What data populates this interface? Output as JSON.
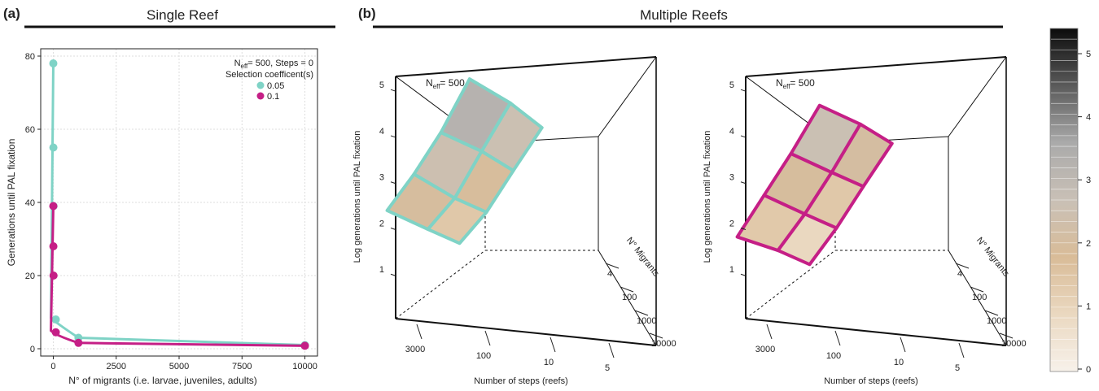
{
  "panels": {
    "a": {
      "letter": "(a)",
      "title": "Single Reef"
    },
    "b": {
      "letter": "(b)",
      "title": "Multiple Reefs"
    }
  },
  "colors": {
    "teal": "#7fd3c6",
    "magenta": "#c51f86",
    "grid": "#dcdcdc",
    "axis": "#222222"
  },
  "chart_data": [
    {
      "type": "line",
      "panel": "a",
      "xlabel": "N° of migrants (i.e. larvae, juveniles, adults)",
      "ylabel": "Generations until PAL fixation",
      "xlim": [
        -500,
        10500
      ],
      "ylim": [
        -2,
        82
      ],
      "xticks": [
        0,
        2500,
        5000,
        7500,
        10000
      ],
      "xtick_labels": [
        "0",
        "2500",
        "5000",
        "7500",
        "10000"
      ],
      "yticks": [
        0,
        20,
        40,
        60,
        80
      ],
      "ytick_labels": [
        "0",
        "20",
        "40",
        "60",
        "80"
      ],
      "grid": true,
      "legend": {
        "position": "top-right",
        "header_prefix": "N",
        "header_sub": "eff",
        "header_suffix": "= 500, Steps = 0",
        "title": "Selection coefficent(s)"
      },
      "series": [
        {
          "name": "0.05",
          "color": "#7fd3c6",
          "x": [
            1,
            4,
            10,
            100,
            1000,
            10000
          ],
          "y": [
            78,
            55,
            39,
            8,
            3,
            1
          ]
        },
        {
          "name": "0.1",
          "color": "#c51f86",
          "x": [
            1,
            4,
            10,
            100,
            1000,
            10000
          ],
          "y": [
            39,
            28,
            20,
            4.5,
            1.6,
            0.8
          ]
        }
      ]
    },
    {
      "type": "surface3d",
      "panel": "b-left",
      "series": [
        {
          "name": "0.05",
          "color": "#7fd3c6"
        }
      ],
      "annotation_prefix": "N",
      "annotation_sub": "eff",
      "annotation_suffix": "= 500",
      "zlabel": "Log generations until PAL fixation",
      "xlabel": "Number of steps (reefs)",
      "ylabel": "N° Migrants",
      "zticks": [
        "1",
        "2",
        "3",
        "4",
        "5"
      ],
      "xticks": [
        "3000",
        "100",
        "10",
        "5"
      ],
      "yticks": [
        "4",
        "100",
        "1000",
        "10000"
      ],
      "grid_values": [
        [
          4.0,
          3.5,
          3.0
        ],
        [
          3.4,
          3.0,
          2.6
        ],
        [
          3.0,
          2.5,
          2.2
        ],
        [
          2.7,
          2.3,
          2.0
        ]
      ]
    },
    {
      "type": "surface3d",
      "panel": "b-right",
      "series": [
        {
          "name": "0.1",
          "color": "#c51f86"
        }
      ],
      "annotation_prefix": "N",
      "annotation_sub": "eff",
      "annotation_suffix": "= 500",
      "zlabel": "Log generations until PAL fixation",
      "xlabel": "Number of steps (reefs)",
      "ylabel": "N° Migrants",
      "zticks": [
        "1",
        "2",
        "3",
        "4",
        "5"
      ],
      "xticks": [
        "3000",
        "100",
        "10",
        "5"
      ],
      "yticks": [
        "4",
        "100",
        "1000",
        "10000"
      ],
      "grid_values": [
        [
          3.5,
          3.1,
          2.7
        ],
        [
          3.0,
          2.6,
          2.3
        ],
        [
          2.6,
          2.2,
          1.9
        ],
        [
          2.2,
          1.9,
          1.6
        ]
      ]
    }
  ],
  "colorbar": {
    "ticks": [
      "5",
      "4",
      "3",
      "2",
      "1",
      "0"
    ],
    "stops": [
      "#f7f1ea",
      "#ead8c0",
      "#d9bc98",
      "#c9c0b6",
      "#aaaaaa",
      "#5a5a5a",
      "#0b0b0b"
    ]
  }
}
